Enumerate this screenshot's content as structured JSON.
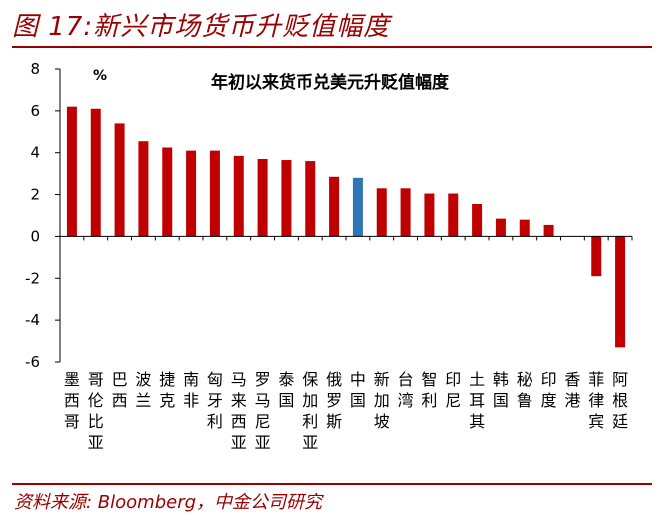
{
  "figure_title": "图 17:新兴市场货币升贬值幅度",
  "source": "资料来源: Bloomberg，中金公司研究",
  "colors": {
    "bar": "#c00000",
    "highlight": "#2e75b6",
    "brand": "#9b0000"
  },
  "chart_data": {
    "type": "bar",
    "title": "年初以来货币兑美元升贬值幅度",
    "unit": "%",
    "ylim": [
      -6,
      8
    ],
    "yticks": [
      -6,
      -4,
      -2,
      0,
      2,
      4,
      6,
      8
    ],
    "grid": false,
    "highlight_category": "中国",
    "categories": [
      "墨西哥",
      "哥伦比亚",
      "巴西",
      "波兰",
      "捷克",
      "南非",
      "匈牙利",
      "马来西亚",
      "罗马尼亚",
      "泰国",
      "保加利亚",
      "俄罗斯",
      "中国",
      "新加坡",
      "台湾",
      "智利",
      "印尼",
      "土耳其",
      "韩国",
      "秘鲁",
      "印度",
      "香港",
      "菲律宾",
      "阿根廷"
    ],
    "values": [
      6.2,
      6.1,
      5.4,
      4.55,
      4.25,
      4.1,
      4.1,
      3.85,
      3.7,
      3.65,
      3.6,
      2.85,
      2.8,
      2.3,
      2.3,
      2.05,
      2.05,
      1.55,
      0.85,
      0.8,
      0.55,
      0.0,
      -1.9,
      -5.3
    ]
  }
}
